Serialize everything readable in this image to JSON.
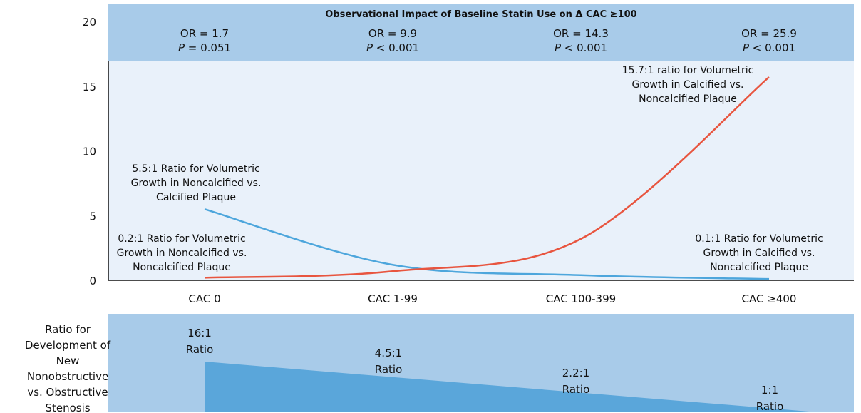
{
  "chart_data": {
    "type": "line",
    "banner_title": "Observational Impact of Baseline Statin Use on Δ CAC ≥100",
    "stats": [
      {
        "or": "OR = 1.7",
        "p_symbol": "P",
        "p": " = 0.051"
      },
      {
        "or": "OR = 9.9",
        "p_symbol": "P",
        "p": " < 0.001"
      },
      {
        "or": "OR = 14.3",
        "p_symbol": "P",
        "p": " < 0.001"
      },
      {
        "or": "OR = 25.9",
        "p_symbol": "P",
        "p": " < 0.001"
      }
    ],
    "categories": [
      "CAC 0",
      "CAC 1-99",
      "CAC 100-399",
      "CAC ≥400"
    ],
    "series": [
      {
        "name": "Noncalcified vs. Calcified",
        "color": "#4da6dc",
        "values": [
          5.5,
          1.2,
          0.4,
          0.1
        ]
      },
      {
        "name": "Calcified vs. Noncalcified",
        "color": "#e8553f",
        "values": [
          0.2,
          0.7,
          3.2,
          15.7
        ]
      }
    ],
    "ylim": [
      0,
      20
    ],
    "yticks": [
      0,
      5,
      10,
      15,
      20
    ],
    "annotations": [
      {
        "lines": [
          "15.7:1 ratio for Volumetric",
          "Growth in Calcified vs.",
          "Noncalcified Plaque"
        ]
      },
      {
        "lines": [
          "5.5:1 Ratio for Volumetric",
          "Growth in Noncalcified vs.",
          "Calcified Plaque"
        ]
      },
      {
        "lines": [
          "0.2:1 Ratio for Volumetric",
          "Growth in Noncalcified vs.",
          "Noncalcified Plaque"
        ]
      },
      {
        "lines": [
          "0.1:1 Ratio for Volumetric",
          "Growth in Calcified vs.",
          "Noncalcified Plaque"
        ]
      }
    ],
    "bottom_label": [
      "Ratio for",
      "Development of",
      "New",
      "Nonobstructive",
      "vs. Obstructive",
      "Stenosis"
    ],
    "bottom_ratios": [
      {
        "ratio": "16:1",
        "word": "Ratio"
      },
      {
        "ratio": "4.5:1",
        "word": "Ratio"
      },
      {
        "ratio": "2.2:1",
        "word": "Ratio"
      },
      {
        "ratio": "1:1",
        "word": "Ratio"
      }
    ]
  }
}
